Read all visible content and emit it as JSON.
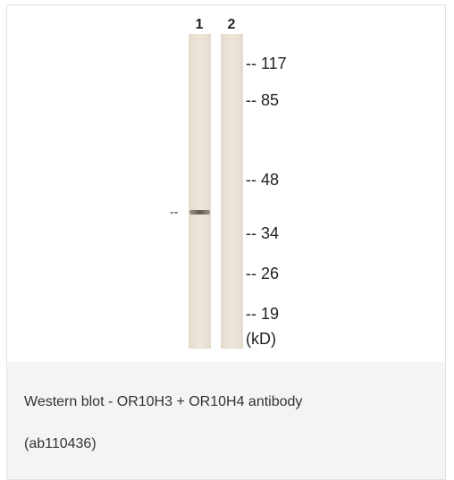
{
  "blot": {
    "lane_labels": [
      "1",
      "2"
    ],
    "band_marker": "--",
    "markers": [
      "-- 117",
      "-- 85",
      "-- 48",
      "-- 34",
      "-- 26",
      "-- 19"
    ],
    "unit": "(kD)"
  },
  "caption": {
    "lines": [
      "Western blot - OR10H3 + OR10H4 antibody",
      "(ab110436)"
    ]
  }
}
